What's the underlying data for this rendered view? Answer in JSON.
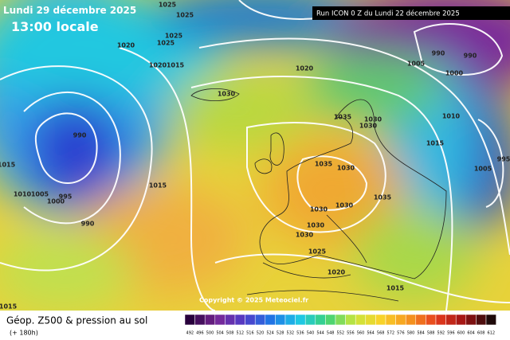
{
  "header": {
    "date": "Lundi 29 décembre 2025",
    "time": "13:00 locale",
    "run": "Run ICON 0 Z du Lundi 22 décembre 2025"
  },
  "map": {
    "isobar_labels": [
      "1025",
      "1025",
      "1025",
      "1025",
      "1020",
      "1020",
      "1015",
      "1020",
      "1030",
      "990",
      "1015",
      "1015",
      "1010",
      "1005",
      "1000",
      "995",
      "990",
      "1035",
      "1030",
      "1030",
      "1035",
      "1030",
      "1030",
      "1030",
      "1035",
      "1030",
      "1030",
      "1025",
      "1020",
      "1015",
      "1015",
      "1005",
      "1000",
      "990",
      "990",
      "1010",
      "1015",
      "1005",
      "995"
    ],
    "copyright": "Copyright © 2025 Meteociel.fr"
  },
  "legend": {
    "title": "Géop. Z500 & pression au sol",
    "subtitle": "(+ 180h)",
    "ticks": [
      492,
      496,
      500,
      504,
      508,
      512,
      516,
      520,
      524,
      528,
      532,
      536,
      540,
      544,
      548,
      552,
      556,
      560,
      564,
      568,
      572,
      576,
      580,
      584,
      588,
      592,
      596,
      600,
      604,
      608,
      612
    ]
  }
}
